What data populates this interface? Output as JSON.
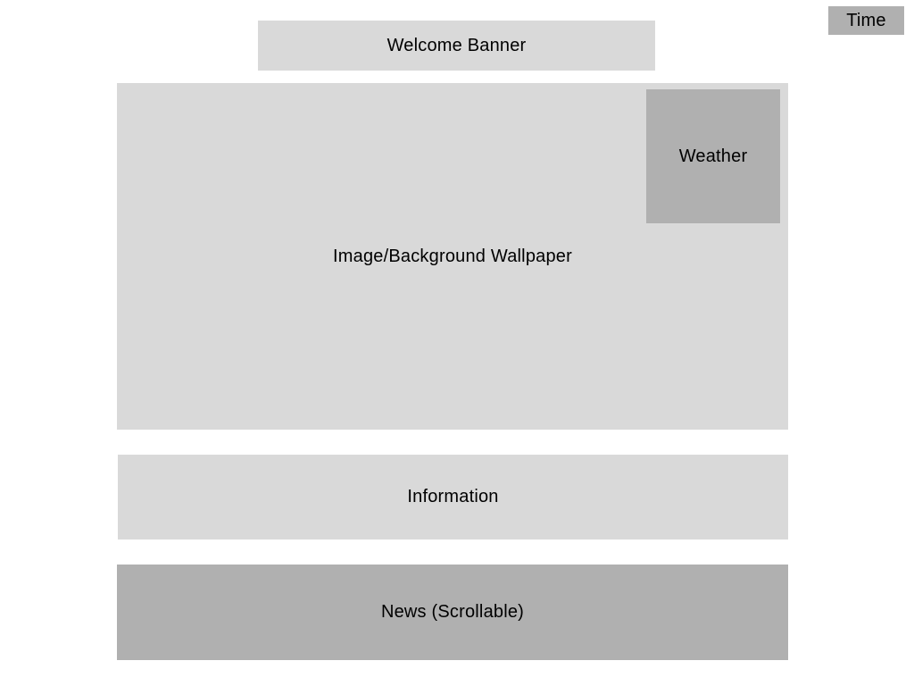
{
  "time": {
    "label": "Time"
  },
  "welcome_banner": {
    "label": "Welcome Banner"
  },
  "wallpaper": {
    "label": "Image/Background Wallpaper"
  },
  "weather": {
    "label": "Weather"
  },
  "information": {
    "label": "Information"
  },
  "news": {
    "label": "News (Scrollable)"
  },
  "colors": {
    "background": "#ffffff",
    "light_panel": "#d9d9d9",
    "dark_panel": "#b0b0b0",
    "text": "#000000"
  }
}
